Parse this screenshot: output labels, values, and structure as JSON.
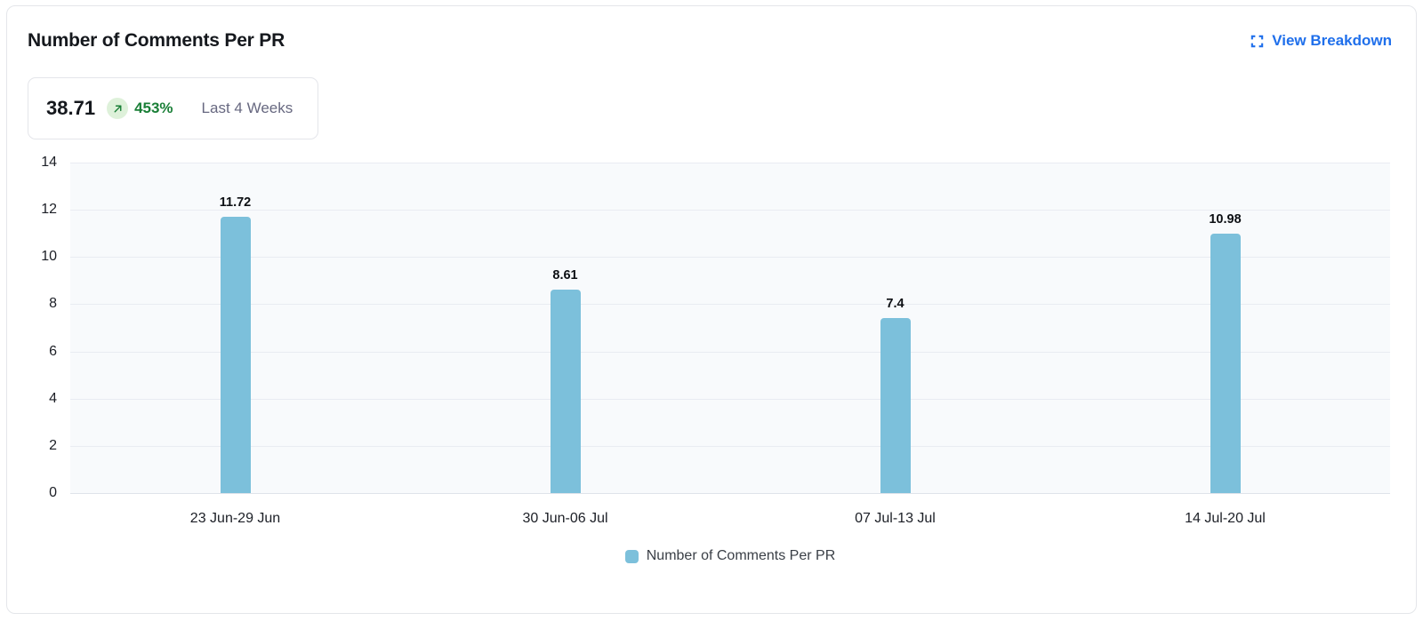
{
  "card": {
    "title": "Number of Comments Per PR",
    "action": {
      "label": "View Breakdown",
      "icon": "expand-icon",
      "color": "#1f6feb"
    }
  },
  "stat": {
    "value": "38.71",
    "trend_icon": "arrow-up-right-icon",
    "delta": "453%",
    "delta_color": "#1a7f37",
    "period": "Last 4 Weeks"
  },
  "chart_data": {
    "type": "bar",
    "title": "Number of Comments Per PR",
    "categories": [
      "23 Jun-29 Jun",
      "30 Jun-06 Jul",
      "07 Jul-13 Jul",
      "14 Jul-20 Jul"
    ],
    "values": [
      11.72,
      8.61,
      7.4,
      10.98
    ],
    "value_labels": [
      "11.72",
      "8.61",
      "7.4",
      "10.98"
    ],
    "series_name": "Number of Comments Per PR",
    "xlabel": "",
    "ylabel": "",
    "ylim": [
      0,
      14
    ],
    "yticks": [
      0,
      2,
      4,
      6,
      8,
      10,
      12,
      14
    ],
    "grid": true,
    "legend_position": "bottom",
    "bar_color": "#7cc0db",
    "plot_bg": "#f8fafc"
  }
}
